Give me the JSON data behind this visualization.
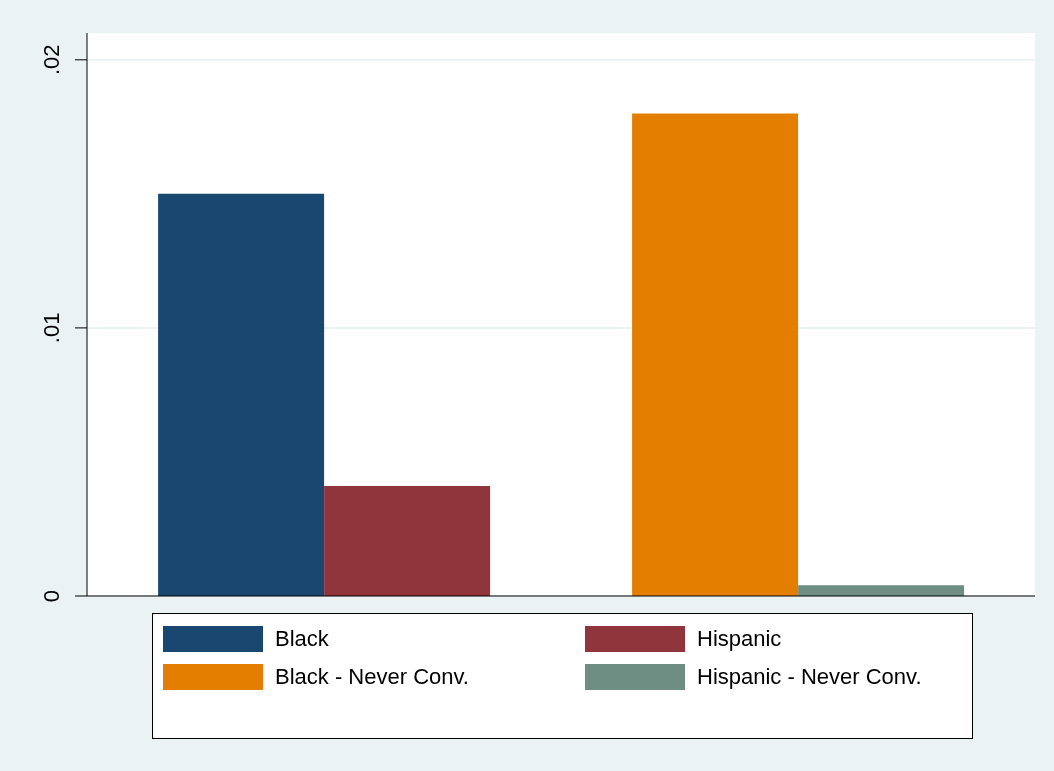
{
  "chart_data": {
    "type": "bar",
    "categories": [
      null,
      null
    ],
    "series": [
      {
        "name": "Black",
        "color": "#1a476f",
        "values": [
          0.015,
          null
        ]
      },
      {
        "name": "Hispanic",
        "color": "#90353b",
        "values": [
          0.0041,
          null
        ]
      },
      {
        "name": "Black - Never Conv.",
        "color": "#e37e00",
        "values": [
          null,
          0.018
        ]
      },
      {
        "name": "Hispanic - Never Conv.",
        "color": "#6e8e84",
        "values": [
          null,
          0.0004
        ]
      }
    ],
    "ylim": [
      0,
      0.021
    ],
    "yticks": [
      0,
      {
        "value": 0.01,
        "label": ".01"
      },
      {
        "value": 0.02,
        "label": ".02"
      }
    ],
    "grid": "y",
    "legend": "bottom",
    "tick_labels": "y"
  }
}
